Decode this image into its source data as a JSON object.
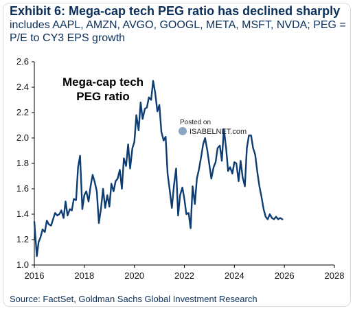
{
  "header": {
    "title": "Exhibit 6: Mega-cap tech PEG ratio has declined sharply",
    "subtitle": "includes AAPL, AMZN, AVGO, GOOGL, META, MSFT, NVDA; PEG = P/E to CY3 EPS growth"
  },
  "footer": {
    "source": "Source: FactSet, Goldman Sachs Global Investment Research"
  },
  "watermark": {
    "line1": "Posted on",
    "line2": "ISABELNET.com"
  },
  "colors": {
    "line": "#0d3d73",
    "text": "#0b2f5b"
  },
  "chart_data": {
    "type": "line",
    "title": "",
    "xlabel": "",
    "ylabel": "",
    "annotation": [
      "Mega-cap tech",
      "PEG ratio"
    ],
    "xlim": [
      2016,
      2028
    ],
    "ylim": [
      1.0,
      2.6
    ],
    "x_ticks": [
      "2016",
      "2018",
      "2020",
      "2022",
      "2024",
      "2026",
      "2028"
    ],
    "y_ticks": [
      "1.0",
      "1.2",
      "1.4",
      "1.6",
      "1.8",
      "2.0",
      "2.2",
      "2.4",
      "2.6"
    ],
    "grid": false,
    "legend": "none",
    "series": [
      {
        "x": [
          2016.0,
          2016.1,
          2016.17,
          2016.25,
          2016.33,
          2016.42,
          2016.5,
          2016.58,
          2016.67,
          2016.75,
          2016.83,
          2016.92,
          2017.0,
          2017.08,
          2017.17,
          2017.25,
          2017.33,
          2017.42,
          2017.5,
          2017.58,
          2017.67,
          2017.75,
          2017.83,
          2017.92,
          2018.0,
          2018.08,
          2018.17,
          2018.25,
          2018.33,
          2018.42,
          2018.5,
          2018.58,
          2018.67,
          2018.75,
          2018.83,
          2018.92,
          2019.0,
          2019.08,
          2019.17,
          2019.25,
          2019.33,
          2019.42,
          2019.5,
          2019.58,
          2019.67,
          2019.75,
          2019.83,
          2019.92,
          2020.0,
          2020.08,
          2020.17,
          2020.25,
          2020.33,
          2020.42,
          2020.5,
          2020.58,
          2020.67,
          2020.75,
          2020.83,
          2020.92,
          2021.0,
          2021.08,
          2021.17,
          2021.25,
          2021.33,
          2021.42,
          2021.5,
          2021.58,
          2021.67,
          2021.75,
          2021.83,
          2021.92,
          2022.0,
          2022.08,
          2022.17,
          2022.25,
          2022.33,
          2022.42,
          2022.5,
          2022.58,
          2022.67,
          2022.75,
          2022.83,
          2022.92,
          2023.0,
          2023.08,
          2023.17,
          2023.25,
          2023.33,
          2023.42,
          2023.5,
          2023.58,
          2023.67,
          2023.75,
          2023.83,
          2023.92,
          2024.0,
          2024.08,
          2024.17,
          2024.25,
          2024.33,
          2024.42,
          2024.5,
          2024.58,
          2024.67,
          2024.75,
          2024.83,
          2024.92,
          2025.0,
          2025.08,
          2025.17,
          2025.25,
          2025.33,
          2025.42,
          2025.5,
          2025.58,
          2025.67,
          2025.75,
          2025.83,
          2025.92
        ],
        "y": [
          1.34,
          1.07,
          1.18,
          1.22,
          1.28,
          1.26,
          1.35,
          1.32,
          1.31,
          1.36,
          1.41,
          1.39,
          1.4,
          1.43,
          1.37,
          1.5,
          1.39,
          1.44,
          1.43,
          1.52,
          1.51,
          1.77,
          1.86,
          1.44,
          1.55,
          1.58,
          1.5,
          1.62,
          1.71,
          1.65,
          1.58,
          1.33,
          1.45,
          1.6,
          1.45,
          1.55,
          1.46,
          1.64,
          1.58,
          1.66,
          1.68,
          1.75,
          1.6,
          1.84,
          1.78,
          1.95,
          1.76,
          1.92,
          1.97,
          2.18,
          2.06,
          2.28,
          2.15,
          2.23,
          2.24,
          2.32,
          2.3,
          2.45,
          2.36,
          2.21,
          2.26,
          2.05,
          1.98,
          2.01,
          1.72,
          1.58,
          1.45,
          1.62,
          1.76,
          1.39,
          1.55,
          1.61,
          1.52,
          1.4,
          1.41,
          1.29,
          1.62,
          1.48,
          1.68,
          1.75,
          1.85,
          1.95,
          2.0,
          1.9,
          1.79,
          1.68,
          1.77,
          1.81,
          1.92,
          1.94,
          1.82,
          2.07,
          1.92,
          1.74,
          1.77,
          1.72,
          1.81,
          1.8,
          1.66,
          1.82,
          1.69,
          1.62,
          1.92,
          2.02,
          2.02,
          1.92,
          1.87,
          1.73,
          1.62,
          1.54,
          1.44,
          1.38,
          1.36,
          1.4,
          1.37,
          1.36,
          1.38,
          1.36,
          1.37,
          1.36
        ]
      }
    ]
  }
}
